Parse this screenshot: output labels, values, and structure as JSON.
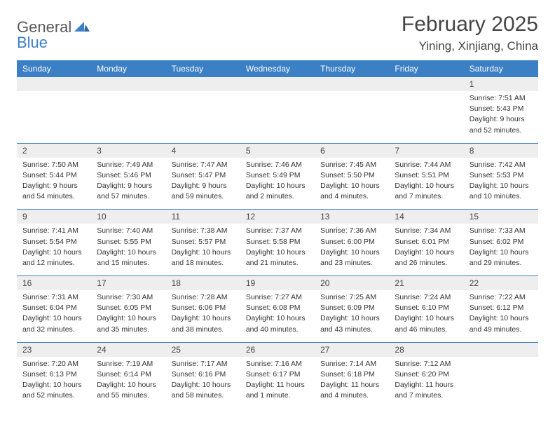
{
  "logo": {
    "part1": "General",
    "part2": "Blue"
  },
  "title": "February 2025",
  "location": "Yining, Xinjiang, China",
  "colors": {
    "header_bg": "#3b7fc4",
    "header_text": "#ffffff",
    "num_bg": "#eeeeee",
    "border": "#3b7fc4",
    "text": "#333333",
    "title_text": "#444444"
  },
  "fonts": {
    "title_size": 30,
    "location_size": 17,
    "dayhead_size": 12,
    "num_size": 12,
    "detail_size": 10.5
  },
  "dayNames": [
    "Sunday",
    "Monday",
    "Tuesday",
    "Wednesday",
    "Thursday",
    "Friday",
    "Saturday"
  ],
  "weeks": [
    {
      "nums": [
        "",
        "",
        "",
        "",
        "",
        "",
        "1"
      ],
      "cells": [
        null,
        null,
        null,
        null,
        null,
        null,
        {
          "sunrise": "Sunrise: 7:51 AM",
          "sunset": "Sunset: 5:43 PM",
          "day1": "Daylight: 9 hours",
          "day2": "and 52 minutes."
        }
      ]
    },
    {
      "nums": [
        "2",
        "3",
        "4",
        "5",
        "6",
        "7",
        "8"
      ],
      "cells": [
        {
          "sunrise": "Sunrise: 7:50 AM",
          "sunset": "Sunset: 5:44 PM",
          "day1": "Daylight: 9 hours",
          "day2": "and 54 minutes."
        },
        {
          "sunrise": "Sunrise: 7:49 AM",
          "sunset": "Sunset: 5:46 PM",
          "day1": "Daylight: 9 hours",
          "day2": "and 57 minutes."
        },
        {
          "sunrise": "Sunrise: 7:47 AM",
          "sunset": "Sunset: 5:47 PM",
          "day1": "Daylight: 9 hours",
          "day2": "and 59 minutes."
        },
        {
          "sunrise": "Sunrise: 7:46 AM",
          "sunset": "Sunset: 5:49 PM",
          "day1": "Daylight: 10 hours",
          "day2": "and 2 minutes."
        },
        {
          "sunrise": "Sunrise: 7:45 AM",
          "sunset": "Sunset: 5:50 PM",
          "day1": "Daylight: 10 hours",
          "day2": "and 4 minutes."
        },
        {
          "sunrise": "Sunrise: 7:44 AM",
          "sunset": "Sunset: 5:51 PM",
          "day1": "Daylight: 10 hours",
          "day2": "and 7 minutes."
        },
        {
          "sunrise": "Sunrise: 7:42 AM",
          "sunset": "Sunset: 5:53 PM",
          "day1": "Daylight: 10 hours",
          "day2": "and 10 minutes."
        }
      ]
    },
    {
      "nums": [
        "9",
        "10",
        "11",
        "12",
        "13",
        "14",
        "15"
      ],
      "cells": [
        {
          "sunrise": "Sunrise: 7:41 AM",
          "sunset": "Sunset: 5:54 PM",
          "day1": "Daylight: 10 hours",
          "day2": "and 12 minutes."
        },
        {
          "sunrise": "Sunrise: 7:40 AM",
          "sunset": "Sunset: 5:55 PM",
          "day1": "Daylight: 10 hours",
          "day2": "and 15 minutes."
        },
        {
          "sunrise": "Sunrise: 7:38 AM",
          "sunset": "Sunset: 5:57 PM",
          "day1": "Daylight: 10 hours",
          "day2": "and 18 minutes."
        },
        {
          "sunrise": "Sunrise: 7:37 AM",
          "sunset": "Sunset: 5:58 PM",
          "day1": "Daylight: 10 hours",
          "day2": "and 21 minutes."
        },
        {
          "sunrise": "Sunrise: 7:36 AM",
          "sunset": "Sunset: 6:00 PM",
          "day1": "Daylight: 10 hours",
          "day2": "and 23 minutes."
        },
        {
          "sunrise": "Sunrise: 7:34 AM",
          "sunset": "Sunset: 6:01 PM",
          "day1": "Daylight: 10 hours",
          "day2": "and 26 minutes."
        },
        {
          "sunrise": "Sunrise: 7:33 AM",
          "sunset": "Sunset: 6:02 PM",
          "day1": "Daylight: 10 hours",
          "day2": "and 29 minutes."
        }
      ]
    },
    {
      "nums": [
        "16",
        "17",
        "18",
        "19",
        "20",
        "21",
        "22"
      ],
      "cells": [
        {
          "sunrise": "Sunrise: 7:31 AM",
          "sunset": "Sunset: 6:04 PM",
          "day1": "Daylight: 10 hours",
          "day2": "and 32 minutes."
        },
        {
          "sunrise": "Sunrise: 7:30 AM",
          "sunset": "Sunset: 6:05 PM",
          "day1": "Daylight: 10 hours",
          "day2": "and 35 minutes."
        },
        {
          "sunrise": "Sunrise: 7:28 AM",
          "sunset": "Sunset: 6:06 PM",
          "day1": "Daylight: 10 hours",
          "day2": "and 38 minutes."
        },
        {
          "sunrise": "Sunrise: 7:27 AM",
          "sunset": "Sunset: 6:08 PM",
          "day1": "Daylight: 10 hours",
          "day2": "and 40 minutes."
        },
        {
          "sunrise": "Sunrise: 7:25 AM",
          "sunset": "Sunset: 6:09 PM",
          "day1": "Daylight: 10 hours",
          "day2": "and 43 minutes."
        },
        {
          "sunrise": "Sunrise: 7:24 AM",
          "sunset": "Sunset: 6:10 PM",
          "day1": "Daylight: 10 hours",
          "day2": "and 46 minutes."
        },
        {
          "sunrise": "Sunrise: 7:22 AM",
          "sunset": "Sunset: 6:12 PM",
          "day1": "Daylight: 10 hours",
          "day2": "and 49 minutes."
        }
      ]
    },
    {
      "nums": [
        "23",
        "24",
        "25",
        "26",
        "27",
        "28",
        ""
      ],
      "cells": [
        {
          "sunrise": "Sunrise: 7:20 AM",
          "sunset": "Sunset: 6:13 PM",
          "day1": "Daylight: 10 hours",
          "day2": "and 52 minutes."
        },
        {
          "sunrise": "Sunrise: 7:19 AM",
          "sunset": "Sunset: 6:14 PM",
          "day1": "Daylight: 10 hours",
          "day2": "and 55 minutes."
        },
        {
          "sunrise": "Sunrise: 7:17 AM",
          "sunset": "Sunset: 6:16 PM",
          "day1": "Daylight: 10 hours",
          "day2": "and 58 minutes."
        },
        {
          "sunrise": "Sunrise: 7:16 AM",
          "sunset": "Sunset: 6:17 PM",
          "day1": "Daylight: 11 hours",
          "day2": "and 1 minute."
        },
        {
          "sunrise": "Sunrise: 7:14 AM",
          "sunset": "Sunset: 6:18 PM",
          "day1": "Daylight: 11 hours",
          "day2": "and 4 minutes."
        },
        {
          "sunrise": "Sunrise: 7:12 AM",
          "sunset": "Sunset: 6:20 PM",
          "day1": "Daylight: 11 hours",
          "day2": "and 7 minutes."
        },
        null
      ]
    }
  ]
}
